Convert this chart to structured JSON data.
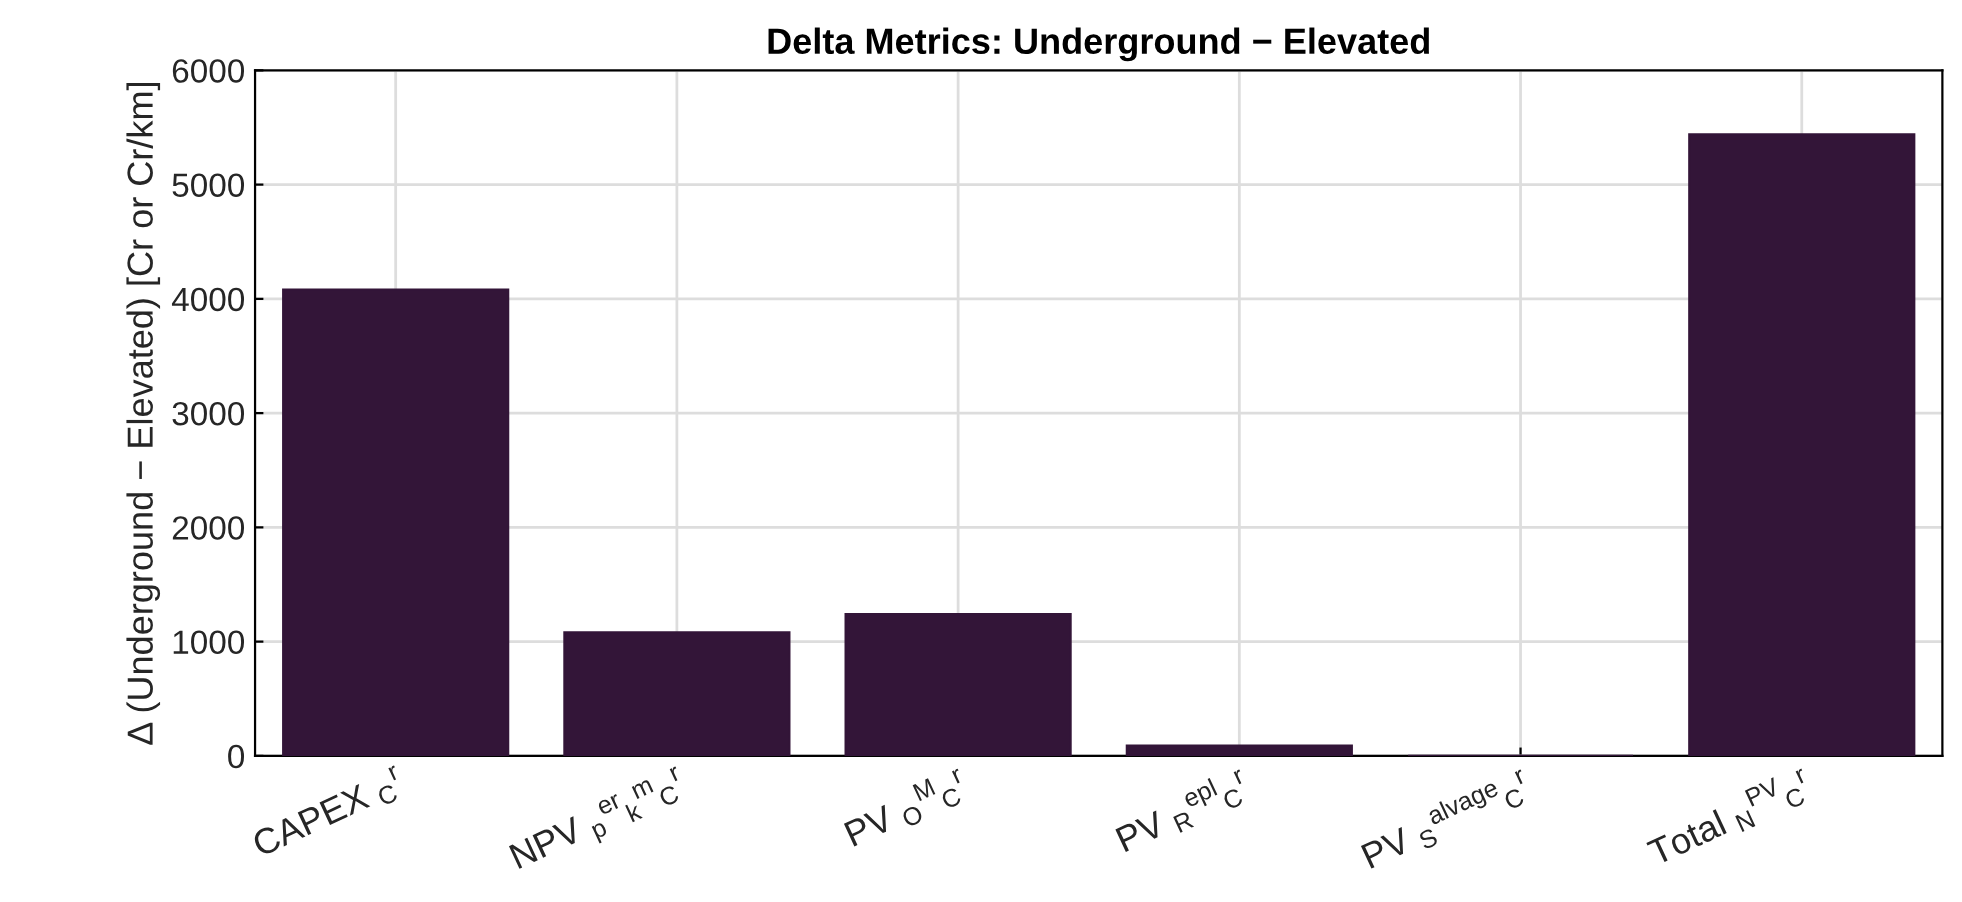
{
  "chart_data": {
    "type": "bar",
    "title": "Delta Metrics: Underground − Elevated",
    "ylabel": "Δ (Underground − Elevated) [Cr or Cr/km]",
    "categories": [
      "CAPEX $_{C}$$^{r}$",
      "NPV $_{p}$$^{er}$$_{k}$$^{m}$$_{C}$$^{r}$",
      "PV $_{O}$$^{M}$$_{C}$$^{r}$",
      "PV $_{R}$$^{epl}$$_{C}$$^{r}$",
      "PV $_{S}$$^{alvage}$$_{C}$$^{r}$",
      "Total $_{N}$$^{PV}$$_{C}$$^{r}$"
    ],
    "values": [
      4080,
      1080,
      1240,
      90,
      0,
      5440
    ],
    "color": "#331538",
    "ylim": [
      0,
      6000
    ],
    "yticks": [
      0,
      1000,
      2000,
      3000,
      4000,
      5000,
      6000
    ],
    "grid": true
  }
}
